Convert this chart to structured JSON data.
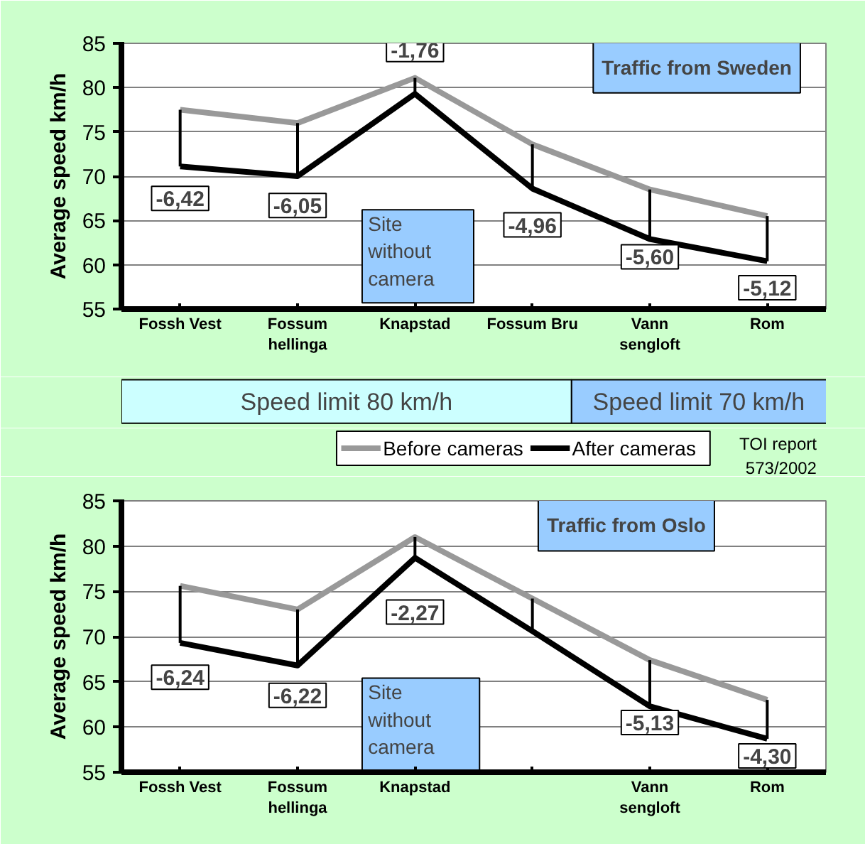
{
  "chart_data": [
    {
      "type": "line",
      "ylabel": "Average speed km/h",
      "categories": [
        "Fossh Vest",
        "Fossum hellinga",
        "Knapstad",
        "Fossum Bru",
        "Vann sengloft",
        "Rom"
      ],
      "series": [
        {
          "name": "Before cameras",
          "color": "#999999",
          "values": [
            77.5,
            76.0,
            81.1,
            73.6,
            68.5,
            65.5
          ]
        },
        {
          "name": "After cameras",
          "color": "#000000",
          "values": [
            71.1,
            70.0,
            79.3,
            68.6,
            62.9,
            60.4
          ],
          "errors": [
            [
              71.1,
              77.5
            ],
            [
              70.0,
              76.0
            ],
            [
              79.3,
              81.1
            ],
            [
              68.6,
              73.6
            ],
            [
              62.9,
              68.5
            ],
            [
              60.4,
              65.5
            ]
          ]
        }
      ],
      "ylim": [
        55,
        85
      ],
      "yticks": [
        55,
        60,
        65,
        70,
        75,
        80,
        85
      ],
      "grid": "y",
      "marker": "none",
      "line_style": "solid",
      "legend": "bottom",
      "annotations": [
        "Traffic from Sweden",
        "Site without camera",
        "Speed limit 80 km/h",
        "Speed limit 70 km/h",
        {
          "text": "-6,42",
          "x": "Fossh Vest",
          "y": 67.5
        },
        {
          "text": "-6,05",
          "x": "Fossum hellinga",
          "y": 66.7
        },
        {
          "text": "-1,76",
          "x": "Knapstad",
          "y": 84.3
        },
        {
          "text": "-4,96",
          "x": "Fossum Bru",
          "y": 64.5
        },
        {
          "text": "-5,60",
          "x": "Vann sengloft",
          "y": 60.9
        },
        {
          "text": "-5,12",
          "x": "Rom",
          "y": 57.4
        }
      ]
    },
    {
      "type": "line",
      "ylabel": "Average speed km/h",
      "categories": [
        "Fossh Vest",
        "Fossum hellinga",
        "Knapstad",
        null,
        "Vann sengloft",
        "Rom"
      ],
      "series": [
        {
          "name": "Before cameras",
          "color": "#999999",
          "values": [
            75.6,
            73.0,
            81.0,
            74.2,
            67.4,
            63.0
          ]
        },
        {
          "name": "After cameras",
          "color": "#000000",
          "values": [
            69.3,
            66.8,
            78.7,
            70.6,
            62.3,
            58.7
          ],
          "errors": [
            [
              69.3,
              75.6
            ],
            [
              66.8,
              73.0
            ],
            [
              78.7,
              81.0
            ],
            [
              70.6,
              74.2
            ],
            [
              62.3,
              67.4
            ],
            [
              58.7,
              63.0
            ]
          ]
        }
      ],
      "ylim": [
        55,
        85
      ],
      "yticks": [
        55,
        60,
        65,
        70,
        75,
        80,
        85
      ],
      "grid": "y",
      "marker": "none",
      "line_style": "solid",
      "legend": "top",
      "annotations": [
        "Traffic from Oslo",
        "Site without camera",
        "TOI report 573/2002",
        {
          "text": "-6,24",
          "x": "Fossh Vest",
          "y": 65.5
        },
        {
          "text": "-6,22",
          "x": "Fossum hellinga",
          "y": 63.5
        },
        {
          "text": "-2,27",
          "x": "Knapstad",
          "y": 72.7
        },
        {
          "text": "-5,13",
          "x": "Vann sengloft",
          "y": 60.5
        },
        {
          "text": "-4,30",
          "x": "Rom",
          "y": 56.8
        }
      ]
    }
  ]
}
